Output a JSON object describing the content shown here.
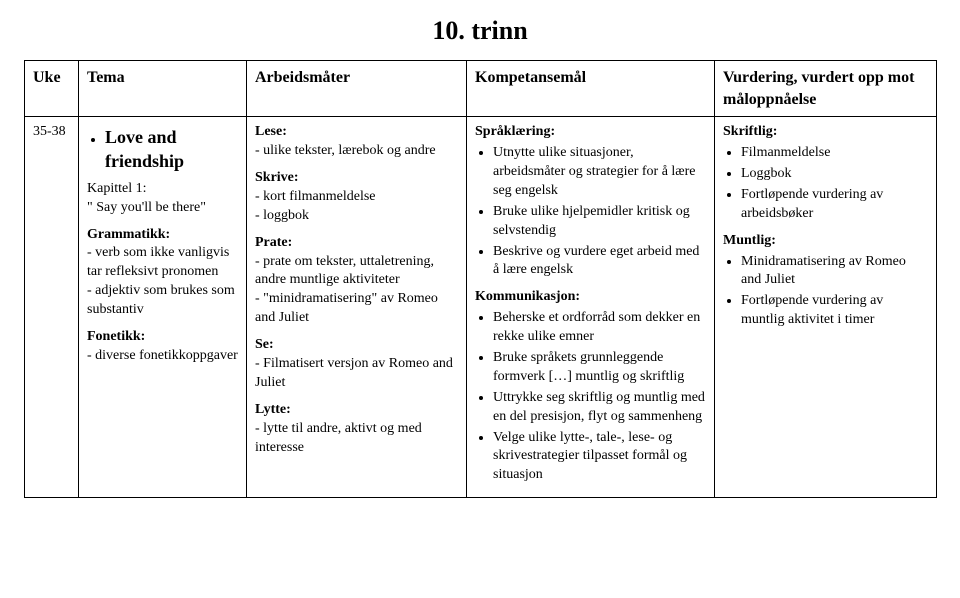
{
  "title": "10. trinn",
  "headers": {
    "uke": "Uke",
    "tema": "Tema",
    "arbeidsmater": "Arbeidsmåter",
    "kompetansemal": "Kompetansemål",
    "vurdering": "Vurdering, vurdert opp mot måloppnåelse"
  },
  "row": {
    "uke": "35-38",
    "tema": {
      "unit_title": "Love and friendship",
      "chapter_label": "Kapittel 1:",
      "chapter_title": "\" Say you'll be there\"",
      "grammar_head": "Grammatikk:",
      "grammar_lines": [
        "- verb som ikke vanligvis tar refleksivt pronomen",
        "- adjektiv som brukes som substantiv"
      ],
      "phonetics_head": "Fonetikk:",
      "phonetics_lines": [
        "- diverse fonetikkoppgaver"
      ]
    },
    "arb": {
      "lese_head": "Lese:",
      "lese_lines": [
        "- ulike tekster, lærebok og andre"
      ],
      "skrive_head": "Skrive:",
      "skrive_lines": [
        "- kort filmanmeldelse",
        "- loggbok"
      ],
      "prate_head": "Prate:",
      "prate_lines": [
        "- prate om tekster, uttaletrening, andre muntlige aktiviteter",
        "- \"minidramatisering\" av Romeo and Juliet"
      ],
      "se_head": "Se:",
      "se_lines": [
        "- Filmatisert versjon av Romeo and Juliet"
      ],
      "lytte_head": "Lytte:",
      "lytte_lines": [
        "- lytte til andre, aktivt og med interesse"
      ]
    },
    "komp": {
      "sprak_head": "Språklæring:",
      "sprak_items": [
        "Utnytte ulike situasjoner, arbeidsmåter og strategier for å lære seg engelsk",
        "Bruke ulike hjelpemidler kritisk og selvstendig",
        "Beskrive og vurdere eget arbeid med å lære engelsk"
      ],
      "komm_head": "Kommunikasjon:",
      "komm_items": [
        "Beherske et ordforråd som dekker en rekke ulike emner",
        "Bruke språkets grunnleggende formverk […] muntlig og skriftlig",
        "Uttrykke seg skriftlig og muntlig med en del presisjon, flyt og sammenheng",
        "Velge ulike lytte-, tale-, lese- og skrivestrategier tilpasset formål og situasjon"
      ]
    },
    "vurd": {
      "skriftlig_head": "Skriftlig:",
      "skriftlig_items": [
        "Filmanmeldelse",
        "Loggbok",
        "Fortløpende vurdering av arbeidsbøker"
      ],
      "muntlig_head": "Muntlig:",
      "muntlig_items": [
        "Minidramatisering av Romeo and Juliet",
        "Fortløpende vurdering av muntlig aktivitet i timer"
      ]
    }
  }
}
